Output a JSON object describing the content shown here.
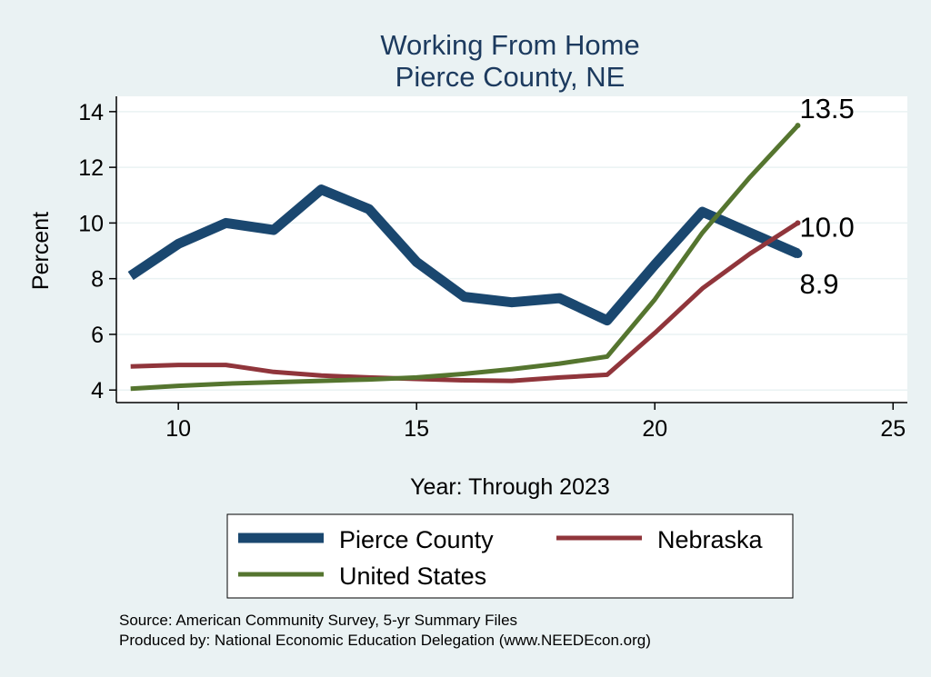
{
  "chart_data": {
    "type": "line",
    "title": [
      "Working From Home",
      "Pierce County, NE"
    ],
    "xlabel": "Year: Through 2023",
    "ylabel": "Percent",
    "xlim": [
      8.7,
      25.3
    ],
    "ylim": [
      3.55,
      14.55
    ],
    "xticks": [
      10,
      15,
      20,
      25
    ],
    "yticks": [
      4,
      6,
      8,
      10,
      12,
      14
    ],
    "grid": "horizontal",
    "legend_position": "bottom",
    "series": [
      {
        "name": "Pierce County",
        "color": "#1a476f",
        "x": [
          9,
          10,
          11,
          12,
          13,
          14,
          15,
          16,
          17,
          18,
          19,
          20,
          21,
          22,
          23
        ],
        "y": [
          8.1,
          9.25,
          10.0,
          9.75,
          11.2,
          10.5,
          8.6,
          7.35,
          7.15,
          7.3,
          6.5,
          8.5,
          10.4,
          9.65,
          8.9
        ],
        "end_label": "8.9"
      },
      {
        "name": "Nebraska",
        "color": "#90353b",
        "x": [
          9,
          10,
          11,
          12,
          13,
          14,
          15,
          16,
          17,
          18,
          19,
          20,
          21,
          22,
          23
        ],
        "y": [
          4.85,
          4.9,
          4.9,
          4.65,
          4.52,
          4.45,
          4.4,
          4.35,
          4.33,
          4.45,
          4.55,
          6.05,
          7.65,
          8.9,
          10.0
        ],
        "end_label": "10.0"
      },
      {
        "name": "United States",
        "color": "#55752f",
        "x": [
          9,
          10,
          11,
          12,
          13,
          14,
          15,
          16,
          17,
          18,
          19,
          20,
          21,
          22,
          23
        ],
        "y": [
          4.05,
          4.15,
          4.23,
          4.28,
          4.33,
          4.38,
          4.45,
          4.58,
          4.75,
          4.95,
          5.2,
          7.25,
          9.65,
          11.65,
          13.5
        ],
        "end_label": "13.5"
      }
    ]
  },
  "source_lines": [
    "Source: American Community Survey, 5-yr Summary Files",
    "Produced by: National Economic Education Delegation (www.NEEDEcon.org)"
  ]
}
